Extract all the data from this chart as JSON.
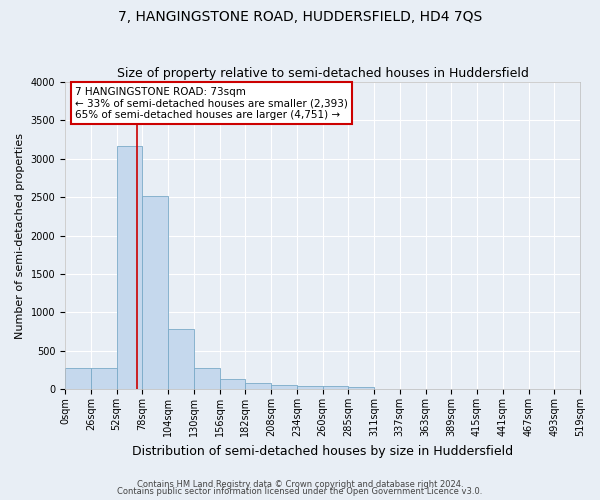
{
  "title": "7, HANGINGSTONE ROAD, HUDDERSFIELD, HD4 7QS",
  "subtitle": "Size of property relative to semi-detached houses in Huddersfield",
  "xlabel": "Distribution of semi-detached houses by size in Huddersfield",
  "ylabel": "Number of semi-detached properties",
  "bin_labels": [
    "0sqm",
    "26sqm",
    "52sqm",
    "78sqm",
    "104sqm",
    "130sqm",
    "156sqm",
    "182sqm",
    "208sqm",
    "234sqm",
    "260sqm",
    "285sqm",
    "311sqm",
    "337sqm",
    "363sqm",
    "389sqm",
    "415sqm",
    "441sqm",
    "467sqm",
    "493sqm",
    "519sqm"
  ],
  "bar_values": [
    270,
    270,
    3170,
    2520,
    780,
    280,
    130,
    80,
    55,
    45,
    35,
    25,
    0,
    0,
    0,
    0,
    0,
    0,
    0,
    0
  ],
  "bar_color": "#c5d8ed",
  "bar_edge_color": "#7aaac8",
  "vline_x": 73,
  "vline_color": "#cc0000",
  "annotation_line1": "7 HANGINGSTONE ROAD: 73sqm",
  "annotation_line2": "← 33% of semi-detached houses are smaller (2,393)",
  "annotation_line3": "65% of semi-detached houses are larger (4,751) →",
  "annotation_box_color": "white",
  "annotation_box_edge": "#cc0000",
  "ylim": [
    0,
    4000
  ],
  "yticks": [
    0,
    500,
    1000,
    1500,
    2000,
    2500,
    3000,
    3500,
    4000
  ],
  "footer1": "Contains HM Land Registry data © Crown copyright and database right 2024.",
  "footer2": "Contains public sector information licensed under the Open Government Licence v3.0.",
  "bg_color": "#e8eef5",
  "plot_bg_color": "#e8eef5",
  "grid_color": "white",
  "title_fontsize": 10,
  "subtitle_fontsize": 9,
  "ylabel_fontsize": 8,
  "xlabel_fontsize": 9,
  "tick_fontsize": 7,
  "annotation_fontsize": 7.5,
  "footer_fontsize": 6
}
